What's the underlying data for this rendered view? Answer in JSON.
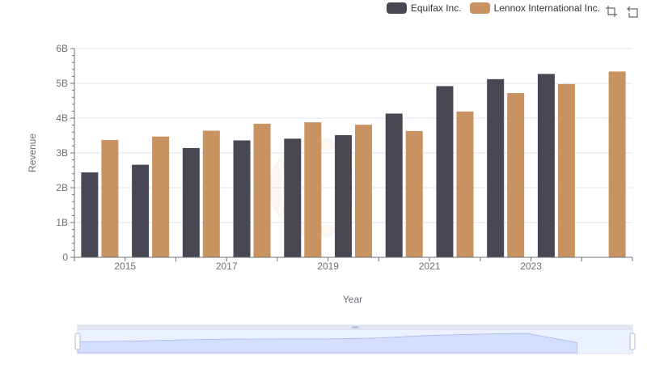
{
  "chart_data": {
    "type": "bar",
    "x": [
      2014,
      2015,
      2016,
      2017,
      2018,
      2019,
      2020,
      2021,
      2022,
      2023,
      2024
    ],
    "x_tick_labels": [
      "2015",
      "2017",
      "2019",
      "2021",
      "2023"
    ],
    "series": [
      {
        "name": "Equifax Inc.",
        "color": "#474854",
        "values": [
          2.44,
          2.66,
          3.14,
          3.36,
          3.41,
          3.51,
          4.13,
          4.92,
          5.12,
          5.27,
          null
        ]
      },
      {
        "name": "Lennox International Inc.",
        "color": "#c89360",
        "values": [
          3.37,
          3.47,
          3.64,
          3.84,
          3.88,
          3.81,
          3.63,
          4.19,
          4.72,
          4.98,
          5.34
        ]
      }
    ],
    "xlabel": "Year",
    "ylabel": "Revenue",
    "ylim": [
      0,
      6
    ],
    "y_ticks": [
      {
        "value": 0,
        "label": "0"
      },
      {
        "value": 1,
        "label": "1B"
      },
      {
        "value": 2,
        "label": "2B"
      },
      {
        "value": 3,
        "label": "3B"
      },
      {
        "value": 4,
        "label": "4B"
      },
      {
        "value": 5,
        "label": "5B"
      },
      {
        "value": 6,
        "label": "6B"
      }
    ],
    "grid": true,
    "legend_position": "top-right"
  },
  "toolbox": {
    "icons": [
      "zoom-icon",
      "restore-icon"
    ]
  },
  "colors": {
    "grid": "#e0e6f1",
    "axis": "#6e7079",
    "zoom_fill": "#d4dfff",
    "zoom_border": "#d2dbee"
  }
}
